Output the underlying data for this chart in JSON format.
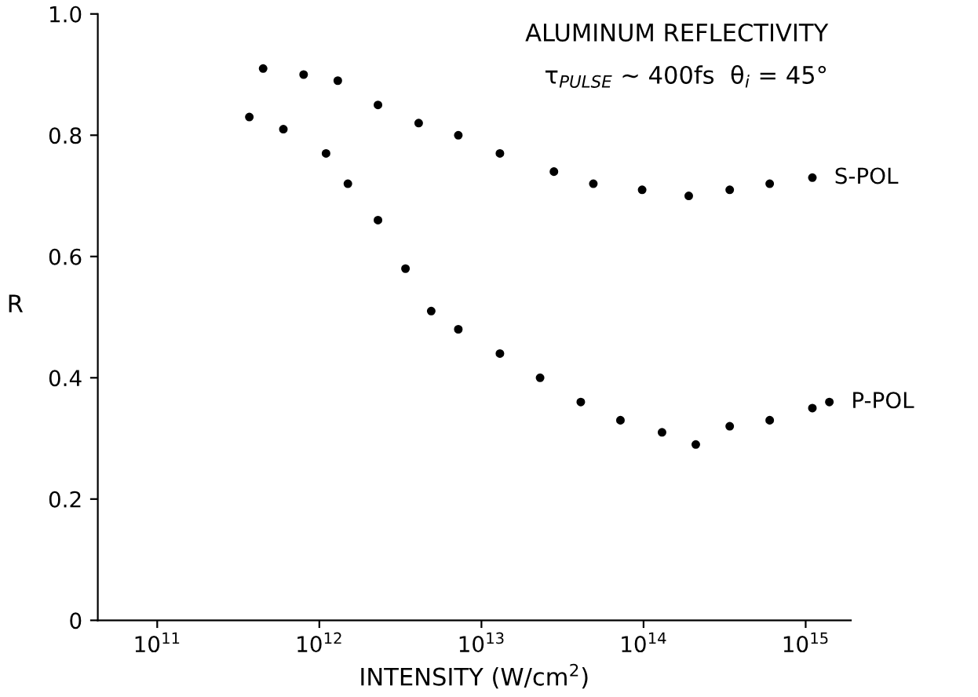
{
  "chart_data": {
    "type": "scatter",
    "title": "ALUMINUM REFLECTIVITY",
    "subtitle": "τ$_{PULSE}$ ~ 400fs  θ$_{i}$ = 45°",
    "xlabel": "INTENSITY (W/cm$^{2}$)",
    "ylabel": "R",
    "log": "x",
    "xlim": [
      43000000000.0,
      1900000000000000.0
    ],
    "ylim": [
      0,
      1.0
    ],
    "xticks": [
      {
        "value": 100000000000.0,
        "label": "10$^{11}$"
      },
      {
        "value": 1000000000000.0,
        "label": "10$^{12}$"
      },
      {
        "value": 10000000000000.0,
        "label": "10$^{13}$"
      },
      {
        "value": 100000000000000.0,
        "label": "10$^{14}$"
      },
      {
        "value": 1000000000000000.0,
        "label": "10$^{15}$"
      }
    ],
    "yticks": [
      0,
      0.2,
      0.4,
      0.6,
      0.8,
      {
        "value": 1.0,
        "label": "1.0"
      }
    ],
    "grid": false,
    "marker": "circle",
    "series": [
      {
        "name": "S-POL",
        "color": "#000000",
        "x": [
          450000000000.0,
          800000000000.0,
          1300000000000.0,
          2300000000000.0,
          4100000000000.0,
          7200000000000.0,
          13000000000000.0,
          28000000000000.0,
          49000000000000.0,
          98000000000000.0,
          190000000000000.0,
          340000000000000.0,
          600000000000000.0,
          1100000000000000.0
        ],
        "values": [
          0.91,
          0.9,
          0.89,
          0.85,
          0.82,
          0.8,
          0.77,
          0.74,
          0.72,
          0.71,
          0.7,
          0.71,
          0.72,
          0.73
        ]
      },
      {
        "name": "P-POL",
        "color": "#000000",
        "x": [
          370000000000.0,
          600000000000.0,
          1100000000000.0,
          1500000000000.0,
          2300000000000.0,
          3400000000000.0,
          4900000000000.0,
          7200000000000.0,
          13000000000000.0,
          23000000000000.0,
          41000000000000.0,
          72000000000000.0,
          130000000000000.0,
          210000000000000.0,
          340000000000000.0,
          600000000000000.0,
          1100000000000000.0,
          1400000000000000.0
        ],
        "values": [
          0.83,
          0.81,
          0.77,
          0.72,
          0.66,
          0.58,
          0.51,
          0.48,
          0.44,
          0.4,
          0.36,
          0.33,
          0.31,
          0.29,
          0.32,
          0.33,
          0.35,
          0.36
        ]
      }
    ]
  }
}
